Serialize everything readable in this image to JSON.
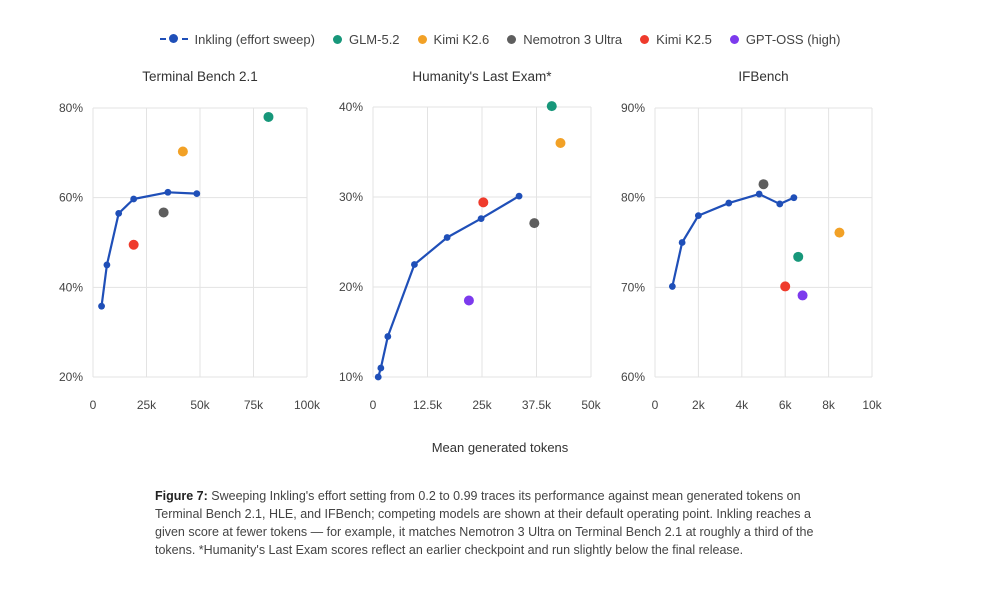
{
  "legend": [
    {
      "label": "Inkling (effort sweep)",
      "color": "#1f4fb8",
      "kind": "line"
    },
    {
      "label": "GLM-5.2",
      "color": "#17977a",
      "kind": "dot"
    },
    {
      "label": "Kimi K2.6",
      "color": "#f2a126",
      "kind": "dot"
    },
    {
      "label": "Nemotron 3 Ultra",
      "color": "#5e5e5e",
      "kind": "dot"
    },
    {
      "label": "Kimi K2.5",
      "color": "#ef3b2c",
      "kind": "dot"
    },
    {
      "label": "GPT-OSS (high)",
      "color": "#7c3aed",
      "kind": "dot"
    }
  ],
  "xlabel": "Mean generated tokens",
  "caption": {
    "bold": "Figure 7:",
    "text": " Sweeping Inkling's effort setting from 0.2 to 0.99 traces its performance against mean generated tokens on Terminal Bench 2.1, HLE, and IFBench; competing models are shown at their default operating point. Inkling reaches a given score at fewer tokens — for example, it matches Nemotron 3 Ultra on Terminal Bench 2.1 at roughly a third of the tokens. *Humanity's Last Exam scores reflect an earlier checkpoint and run slightly below the final release."
  },
  "chart_data": [
    {
      "type": "scatter",
      "title": "Terminal Bench 2.1",
      "xlim": [
        0,
        100000
      ],
      "ylim": [
        20,
        80
      ],
      "xticks": [
        0,
        25000,
        50000,
        75000,
        100000
      ],
      "xtick_labels": [
        "0",
        "25k",
        "50k",
        "75k",
        "100k"
      ],
      "yticks": [
        20,
        40,
        60,
        80
      ],
      "ytick_labels": [
        "20%",
        "40%",
        "60%",
        "80%"
      ],
      "grid": true,
      "sweep": {
        "name": "Inkling (effort sweep)",
        "color": "#1f4fb8",
        "points": [
          [
            4000,
            35.8
          ],
          [
            6500,
            45.0
          ],
          [
            12000,
            56.5
          ],
          [
            19000,
            59.7
          ],
          [
            35000,
            61.2
          ],
          [
            48500,
            60.9
          ]
        ]
      },
      "models": [
        {
          "name": "GLM-5.2",
          "color": "#17977a",
          "x": 82000,
          "y": 78.0
        },
        {
          "name": "Kimi K2.6",
          "color": "#f2a126",
          "x": 42000,
          "y": 70.3
        },
        {
          "name": "Nemotron 3 Ultra",
          "color": "#5e5e5e",
          "x": 33000,
          "y": 56.7
        },
        {
          "name": "Kimi K2.5",
          "color": "#ef3b2c",
          "x": 19000,
          "y": 49.5
        }
      ]
    },
    {
      "type": "scatter",
      "title": "Humanity's Last Exam*",
      "xlim": [
        0,
        50000
      ],
      "ylim": [
        10,
        40
      ],
      "xticks": [
        0,
        12500,
        25000,
        37500,
        50000
      ],
      "xtick_labels": [
        "0",
        "12.5k",
        "25k",
        "37.5k",
        "50k"
      ],
      "yticks": [
        10,
        20,
        30,
        40
      ],
      "ytick_labels": [
        "10%",
        "20%",
        "30%",
        "40%"
      ],
      "grid": true,
      "sweep": {
        "name": "Inkling (effort sweep)",
        "color": "#1f4fb8",
        "points": [
          [
            1200,
            10.0
          ],
          [
            1800,
            11.0
          ],
          [
            3400,
            14.5
          ],
          [
            9500,
            22.5
          ],
          [
            17000,
            25.5
          ],
          [
            24800,
            27.6
          ],
          [
            33500,
            30.1
          ]
        ]
      },
      "models": [
        {
          "name": "GLM-5.2",
          "color": "#17977a",
          "x": 41000,
          "y": 40.1
        },
        {
          "name": "Kimi K2.6",
          "color": "#f2a126",
          "x": 43000,
          "y": 36.0
        },
        {
          "name": "Nemotron 3 Ultra",
          "color": "#5e5e5e",
          "x": 37000,
          "y": 27.1
        },
        {
          "name": "Kimi K2.5",
          "color": "#ef3b2c",
          "x": 25300,
          "y": 29.4
        },
        {
          "name": "GPT-OSS (high)",
          "color": "#7c3aed",
          "x": 22000,
          "y": 18.5
        }
      ]
    },
    {
      "type": "scatter",
      "title": "IFBench",
      "xlim": [
        0,
        10000
      ],
      "ylim": [
        60,
        90
      ],
      "xticks": [
        0,
        2000,
        4000,
        6000,
        8000,
        10000
      ],
      "xtick_labels": [
        "0",
        "2k",
        "4k",
        "6k",
        "8k",
        "10k"
      ],
      "yticks": [
        60,
        70,
        80,
        90
      ],
      "ytick_labels": [
        "60%",
        "70%",
        "80%",
        "90%"
      ],
      "grid": true,
      "sweep": {
        "name": "Inkling (effort sweep)",
        "color": "#1f4fb8",
        "points": [
          [
            800,
            70.1
          ],
          [
            1250,
            75.0
          ],
          [
            2000,
            78.0
          ],
          [
            3400,
            79.4
          ],
          [
            4800,
            80.4
          ],
          [
            5750,
            79.3
          ],
          [
            6400,
            80.0
          ]
        ]
      },
      "models": [
        {
          "name": "Nemotron 3 Ultra",
          "color": "#5e5e5e",
          "x": 5000,
          "y": 81.5
        },
        {
          "name": "Kimi K2.6",
          "color": "#f2a126",
          "x": 8500,
          "y": 76.1
        },
        {
          "name": "GLM-5.2",
          "color": "#17977a",
          "x": 6600,
          "y": 73.4
        },
        {
          "name": "Kimi K2.5",
          "color": "#ef3b2c",
          "x": 6000,
          "y": 70.1
        },
        {
          "name": "GPT-OSS (high)",
          "color": "#7c3aed",
          "x": 6800,
          "y": 69.1
        }
      ]
    }
  ]
}
